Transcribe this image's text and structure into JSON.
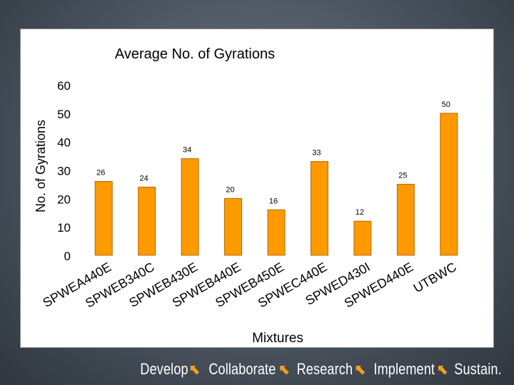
{
  "footer": {
    "words": [
      "Develop",
      "Collaborate",
      "Research",
      "Implement",
      "Sustain."
    ],
    "arrow_glyph": "⬉",
    "arrow_color": "#f0a020"
  },
  "chart_data": {
    "type": "bar",
    "title": "Average No. of  Gyrations",
    "xlabel": "Mixtures",
    "ylabel": "No. of  Gyrations",
    "categories": [
      "SPWEA440E",
      "SPWEB340C",
      "SPWEB430E",
      "SPWEB440E",
      "SPWEB450E",
      "SPWEC440E",
      "SPWED430I",
      "SPWED440E",
      "UTBWC"
    ],
    "values": [
      26,
      24,
      34,
      20,
      16,
      33,
      12,
      25,
      50
    ],
    "data_labels": [
      "26",
      "24",
      "34",
      "20",
      "16",
      "33",
      "12",
      "25",
      "50"
    ],
    "ylim": [
      0,
      60
    ],
    "yticks": [
      0,
      10,
      20,
      30,
      40,
      50,
      60
    ],
    "grid": false,
    "legend": "none",
    "bar_color": "#ff9900",
    "bar_edge_color": "#b36b00"
  }
}
